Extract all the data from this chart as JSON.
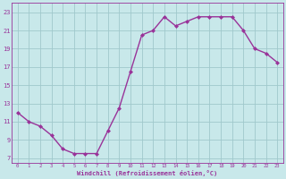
{
  "x": [
    0,
    1,
    2,
    3,
    4,
    5,
    6,
    7,
    8,
    9,
    10,
    11,
    12,
    13,
    14,
    15,
    16,
    17,
    18,
    19,
    20,
    21,
    22,
    23
  ],
  "y": [
    12,
    11,
    10.5,
    9.5,
    8,
    7.5,
    7.5,
    7.5,
    10,
    12.5,
    16.5,
    20.5,
    21,
    22.5,
    21.5,
    22,
    22.5,
    22.5,
    22.5,
    22.5,
    21,
    19,
    18.5,
    17.5
  ],
  "line_color": "#993399",
  "marker_color": "#993399",
  "bg_color": "#c8e8ea",
  "grid_color": "#a0c8cc",
  "axis_color": "#993399",
  "xlabel": "Windchill (Refroidissement éolien,°C)",
  "ylim": [
    6.5,
    24
  ],
  "xlim": [
    -0.5,
    23.5
  ],
  "yticks": [
    7,
    9,
    11,
    13,
    15,
    17,
    19,
    21,
    23
  ],
  "xticks": [
    0,
    1,
    2,
    3,
    4,
    5,
    6,
    7,
    8,
    9,
    10,
    11,
    12,
    13,
    14,
    15,
    16,
    17,
    18,
    19,
    20,
    21,
    22,
    23
  ]
}
